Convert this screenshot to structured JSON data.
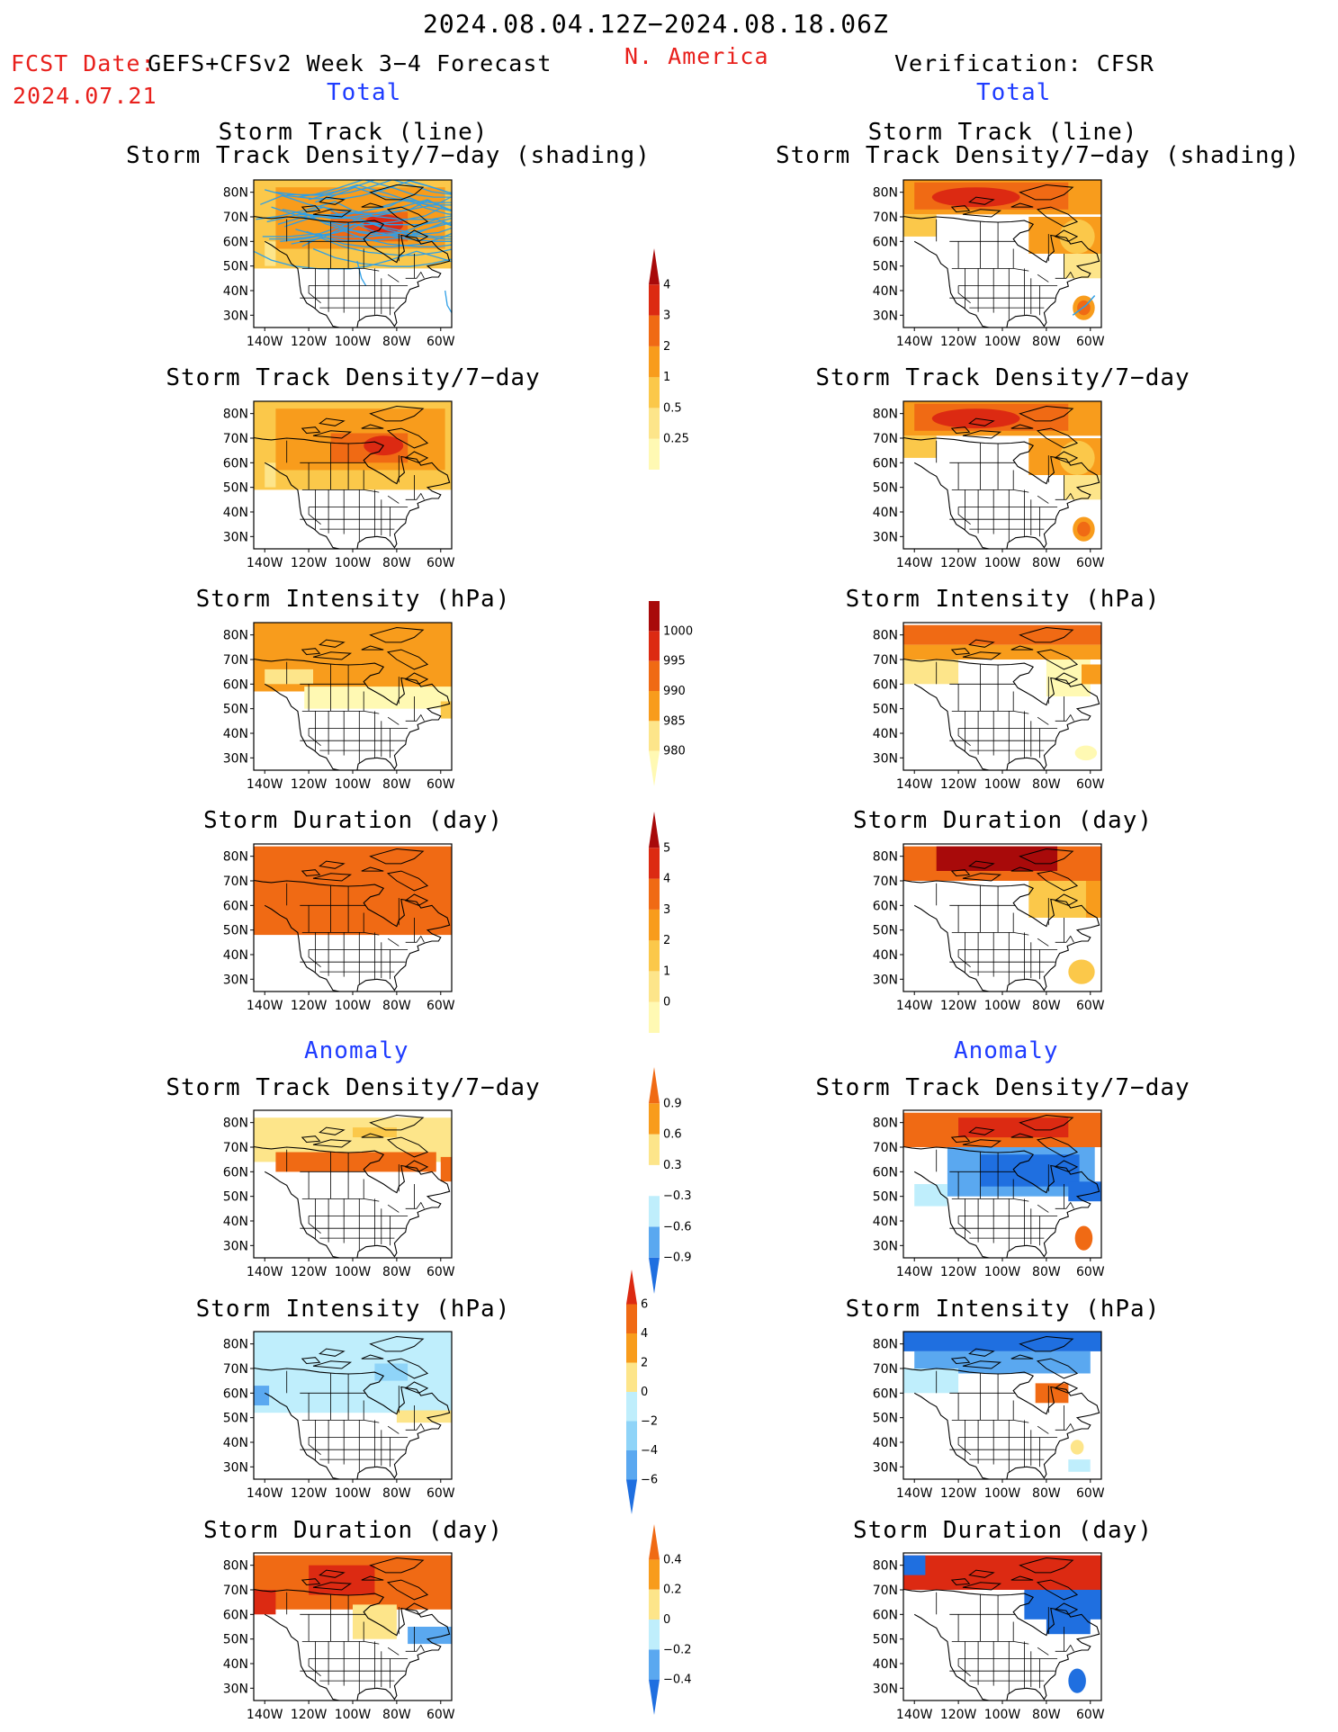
{
  "header": {
    "date_range": "2024.08.04.12Z−2024.08.18.06Z",
    "fcst_label": "FCST Date:",
    "fcst_model": "GEFS+CFSv2 Week 3−4 Forecast",
    "fcst_date": "2024.07.21",
    "region": "N. America",
    "verification": "Verification: CFSR",
    "left_total": "Total",
    "right_total": "Total",
    "left_anomaly": "Anomaly",
    "right_anomaly": "Anomaly"
  },
  "titles": {
    "track_line": "Storm Track (line)",
    "track_shading": "Storm Track Density/7−day (shading)",
    "density": "Storm Track Density/7−day",
    "intensity": "Storm Intensity (hPa)",
    "duration": "Storm Duration (day)"
  },
  "axes": {
    "lat_labels": [
      "80N",
      "70N",
      "60N",
      "50N",
      "40N",
      "30N"
    ],
    "lon_labels": [
      "140W",
      "120W",
      "100W",
      "80W",
      "60W"
    ]
  },
  "colorbars": {
    "density_total": [
      "4",
      "3",
      "2",
      "1",
      "0.5",
      "0.25"
    ],
    "intensity_total": [
      "1000",
      "995",
      "990",
      "985",
      "980"
    ],
    "duration_total": [
      "5",
      "4",
      "3",
      "2",
      "1",
      "0"
    ],
    "density_anom": [
      "0.9",
      "0.6",
      "0.3",
      "−0.3",
      "−0.6",
      "−0.9"
    ],
    "intensity_anom": [
      "6",
      "4",
      "2",
      "0",
      "−2",
      "−4",
      "−6"
    ],
    "duration_anom": [
      "0.4",
      "0.2",
      "0",
      "−0.2",
      "−0.4"
    ]
  },
  "colors": {
    "pale": "#fff9b3",
    "light_yellow": "#fde58a",
    "yellow": "#fbc84a",
    "orange": "#f89c1c",
    "dark_orange": "#f06a14",
    "red": "#dc2a12",
    "dark_red": "#a80a0a",
    "light_blue": "#bfeefc",
    "sky": "#8fd4f8",
    "mid_blue": "#5aa8f0",
    "blue": "#1f6fe0",
    "track": "#2f9fe6"
  }
}
